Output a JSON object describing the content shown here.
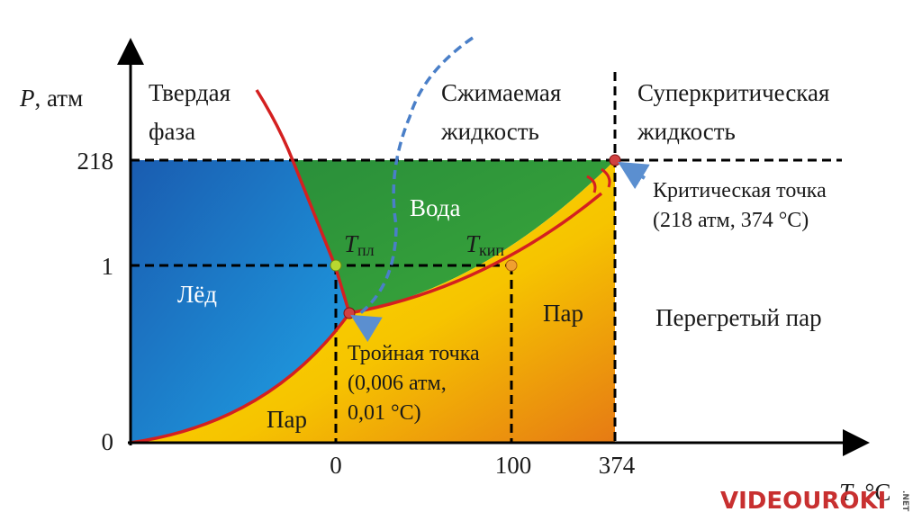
{
  "axes": {
    "y_label": {
      "symbol": "P",
      "unit": ", атм"
    },
    "y_ticks": [
      "218",
      "1",
      "0"
    ],
    "x_ticks": [
      "0",
      "100",
      "374"
    ],
    "x_label": {
      "symbol": "T",
      "unit": ", °C"
    }
  },
  "regions": {
    "solid": [
      "Твердая",
      "фаза"
    ],
    "compressible": [
      "Сжимаемая",
      "жидкость"
    ],
    "supercritical": [
      "Суперкритическая",
      "жидкость"
    ],
    "water": "Вода",
    "ice": "Лёд",
    "vapor_left": "Пар",
    "vapor_right": "Пар",
    "superheated": "Перегретый пар"
  },
  "points": {
    "melting": {
      "symbol": "T",
      "subscript": "пл"
    },
    "boiling": {
      "symbol": "T",
      "subscript": "кип"
    },
    "critical": [
      "Критическая точка",
      "(218 атм, 374 °C)"
    ],
    "triple": [
      "Тройная точка",
      "(0,006 атм,",
      "0,01 °C)"
    ]
  },
  "watermark": {
    "brand": "VIDEOUROKI",
    "suffix": ".NET"
  }
}
